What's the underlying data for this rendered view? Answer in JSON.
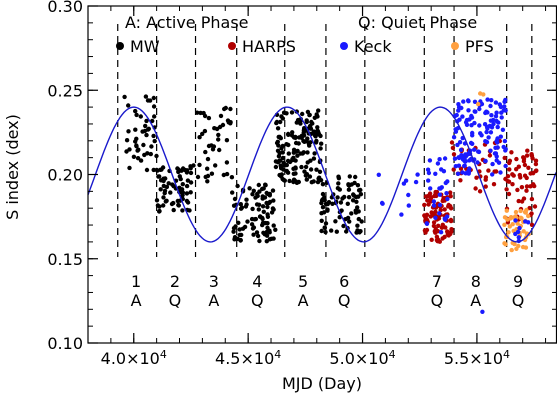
{
  "chart_data": {
    "type": "scatter",
    "xlabel": "MJD (Day)",
    "ylabel": "S index (dex)",
    "xlim": [
      38000,
      58500
    ],
    "ylim": [
      0.1,
      0.3
    ],
    "x_ticks": [
      {
        "value": 40000,
        "label": "4.0×10",
        "exp": "4"
      },
      {
        "value": 45000,
        "label": "4.5×10",
        "exp": "4"
      },
      {
        "value": 50000,
        "label": "5.0×10",
        "exp": "4"
      },
      {
        "value": 55000,
        "label": "5.5×10",
        "exp": "4"
      }
    ],
    "y_ticks": [
      "0.10",
      "0.15",
      "0.20",
      "0.25",
      "0.30"
    ],
    "y_tick_values": [
      0.1,
      0.15,
      0.2,
      0.25,
      0.3
    ],
    "legend_phases": {
      "active": "A:  Active Phase",
      "quiet": "Q:  Quiet Phase"
    },
    "series": [
      {
        "name": "MW",
        "color": "#000000",
        "marker": "dot"
      },
      {
        "name": "HARPS",
        "color": "#b00000",
        "marker": "dot"
      },
      {
        "name": "Keck",
        "color": "#1a1aff",
        "marker": "dot"
      },
      {
        "name": "PFS",
        "color": "#ffa040",
        "marker": "dot"
      }
    ],
    "fit_curve": {
      "color": "#1a1acc",
      "center": 0.2,
      "amplitude": 0.04,
      "period": 6700,
      "peak_mjd": 40000
    },
    "phase_boundaries": [
      39300,
      41000,
      42700,
      44500,
      46600,
      48400,
      50100,
      52700,
      54000,
      56300,
      57400
    ],
    "phases": [
      {
        "num": "1",
        "type": "A",
        "x": 40100
      },
      {
        "num": "2",
        "type": "Q",
        "x": 41800
      },
      {
        "num": "3",
        "type": "A",
        "x": 43500
      },
      {
        "num": "4",
        "type": "Q",
        "x": 45400
      },
      {
        "num": "5",
        "type": "A",
        "x": 47400
      },
      {
        "num": "6",
        "type": "Q",
        "x": 49200
      },
      {
        "num": "7",
        "type": "Q",
        "x": 53250
      },
      {
        "num": "8",
        "type": "A",
        "x": 54950
      },
      {
        "num": "9",
        "type": "Q",
        "x": 56800
      }
    ],
    "data_clusters": [
      {
        "series": "MW",
        "x0": 39600,
        "x1": 41000,
        "y0": 0.2,
        "y1": 0.25,
        "n": 45
      },
      {
        "series": "MW",
        "x0": 41000,
        "x1": 42500,
        "y0": 0.178,
        "y1": 0.205,
        "n": 70
      },
      {
        "series": "MW",
        "x0": 42500,
        "x1": 44300,
        "y0": 0.195,
        "y1": 0.24,
        "n": 45
      },
      {
        "series": "MW",
        "x0": 44300,
        "x1": 46200,
        "y0": 0.16,
        "y1": 0.195,
        "n": 95
      },
      {
        "series": "MW",
        "x0": 46200,
        "x1": 48200,
        "y0": 0.195,
        "y1": 0.238,
        "n": 160
      },
      {
        "series": "MW",
        "x0": 48200,
        "x1": 50000,
        "y0": 0.165,
        "y1": 0.2,
        "n": 80
      },
      {
        "series": "Keck",
        "x0": 50400,
        "x1": 52600,
        "y0": 0.17,
        "y1": 0.205,
        "n": 10
      },
      {
        "series": "HARPS",
        "x0": 52700,
        "x1": 53900,
        "y0": 0.16,
        "y1": 0.19,
        "n": 90
      },
      {
        "series": "Keck",
        "x0": 52800,
        "x1": 53800,
        "y0": 0.165,
        "y1": 0.21,
        "n": 30
      },
      {
        "series": "HARPS",
        "x0": 53900,
        "x1": 56000,
        "y0": 0.19,
        "y1": 0.22,
        "n": 35
      },
      {
        "series": "Keck",
        "x0": 54000,
        "x1": 56300,
        "y0": 0.2,
        "y1": 0.245,
        "n": 140
      },
      {
        "series": "Keck",
        "x0": 55200,
        "x1": 55300,
        "y0": 0.117,
        "y1": 0.121,
        "n": 1
      },
      {
        "series": "PFS",
        "x0": 55000,
        "x1": 55300,
        "y0": 0.238,
        "y1": 0.25,
        "n": 3
      },
      {
        "series": "HARPS",
        "x0": 56200,
        "x1": 57600,
        "y0": 0.17,
        "y1": 0.215,
        "n": 60
      },
      {
        "series": "PFS",
        "x0": 56200,
        "x1": 57300,
        "y0": 0.155,
        "y1": 0.18,
        "n": 45
      },
      {
        "series": "Keck",
        "x0": 56400,
        "x1": 57400,
        "y0": 0.16,
        "y1": 0.175,
        "n": 8
      }
    ]
  }
}
